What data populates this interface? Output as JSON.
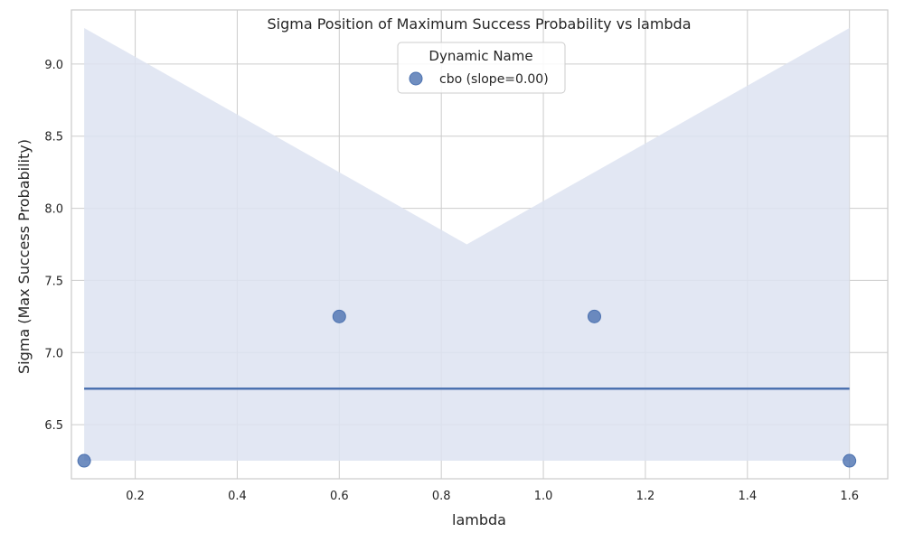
{
  "chart_data": {
    "type": "scatter",
    "title": "Sigma Position of Maximum Success Probability vs lambda",
    "xlabel": "lambda",
    "ylabel": "Sigma (Max Success Probability)",
    "xlim": [
      0.075,
      1.675
    ],
    "ylim": [
      6.125,
      9.375
    ],
    "xticks": [
      "0.2",
      "0.4",
      "0.6",
      "0.8",
      "1.0",
      "1.2",
      "1.4",
      "1.6"
    ],
    "yticks": [
      "6.5",
      "7.0",
      "7.5",
      "8.0",
      "8.5",
      "9.0"
    ],
    "grid": true,
    "legend": {
      "title": "Dynamic Name",
      "position": "top-center"
    },
    "series": [
      {
        "name": "cbo (slope=0.00)",
        "x": [
          0.1,
          0.6,
          1.1,
          1.6
        ],
        "y": [
          6.25,
          7.25,
          7.25,
          6.25
        ],
        "fit": {
          "slope": 0.0,
          "intercept": 6.75
        },
        "confidence_band": {
          "x": [
            0.1,
            0.85,
            1.6
          ],
          "upper": [
            9.25,
            7.75,
            9.25
          ],
          "lower": [
            6.25,
            6.25,
            6.25
          ]
        }
      }
    ],
    "colors": {
      "series": "#4c72b0",
      "band": "#dde3f1",
      "grid": "#cccccc",
      "spine": "#cccccc"
    }
  }
}
